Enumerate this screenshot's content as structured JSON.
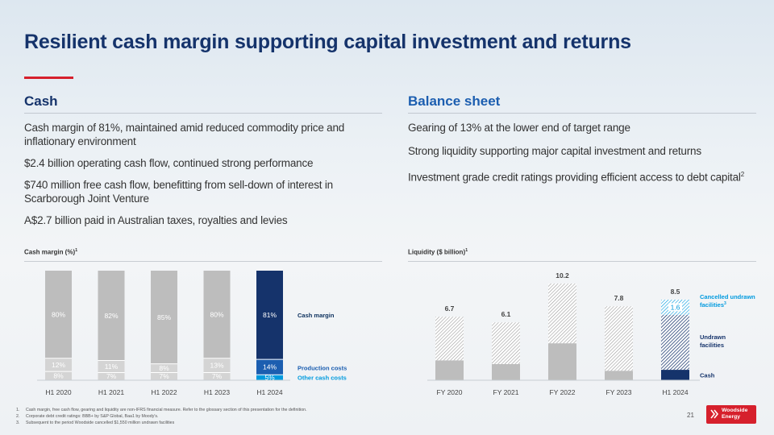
{
  "title": "Resilient cash margin supporting capital investment and returns",
  "cash": {
    "heading": "Cash",
    "bullets": [
      [
        "Cash margin of 81%, maintained amid reduced commodity price and",
        "inflationary environment"
      ],
      [
        "$2.4 billion operating cash flow, continued strong performance"
      ],
      [
        "$740 million free cash flow, benefitting from sell-down of interest in",
        "Scarborough Joint Venture"
      ],
      [
        "A$2.7 billion paid in Australian taxes, royalties and levies"
      ]
    ]
  },
  "balance": {
    "heading": "Balance sheet",
    "bullets": [
      "Gearing of 13% at the lower end of target range",
      "Strong liquidity supporting major capital investment and returns",
      "Investment grade credit ratings providing efficient access to debt capital"
    ],
    "last_sup": "2"
  },
  "chart_data": [
    {
      "type": "bar",
      "title": "Cash margin (%)",
      "title_sup": "1",
      "categories": [
        "H1 2020",
        "H1 2021",
        "H1 2022",
        "H1 2023",
        "H1 2024"
      ],
      "series": [
        {
          "name": "Other cash costs",
          "values": [
            8,
            7,
            7,
            7,
            5
          ],
          "labels": [
            "8%",
            "7%",
            "7%",
            "7%",
            "5%"
          ]
        },
        {
          "name": "Production costs",
          "values": [
            12,
            11,
            8,
            13,
            14
          ],
          "labels": [
            "12%",
            "11%",
            "8%",
            "13%",
            "14%"
          ]
        },
        {
          "name": "Cash margin",
          "values": [
            80,
            82,
            85,
            80,
            81
          ],
          "labels": [
            "80%",
            "82%",
            "85%",
            "80%",
            "81%"
          ]
        }
      ],
      "legend": [
        "Cash margin",
        "Production costs",
        "Other cash costs"
      ],
      "ylim": [
        0,
        100
      ]
    },
    {
      "type": "bar",
      "title": "Liquidity ($ billion)",
      "title_sup": "1",
      "categories": [
        "FY 2020",
        "FY 2021",
        "FY 2022",
        "FY 2023",
        "H1 2024"
      ],
      "totals": [
        6.7,
        6.1,
        10.2,
        7.8,
        8.5
      ],
      "total_labels": [
        "6.7",
        "6.1",
        "10.2",
        "7.8",
        "8.5"
      ],
      "series": [
        {
          "name": "Cash",
          "values": [
            2.1,
            1.7,
            3.9,
            1.0,
            1.1
          ]
        },
        {
          "name": "Undrawn facilities",
          "values": [
            4.6,
            4.4,
            6.3,
            6.8,
            5.8
          ]
        },
        {
          "name": "Cancelled undrawn facilities",
          "values": [
            0,
            0,
            0,
            0,
            1.6
          ],
          "labels": [
            "",
            "",
            "",
            "",
            "1.6"
          ]
        }
      ],
      "legend": [
        {
          "label": "Cancelled undrawn facilities",
          "sup": "3",
          "color": "#009ade"
        },
        {
          "label": "Undrawn facilities",
          "color": "#15336b"
        },
        {
          "label": "Cash",
          "color": "#15336b"
        }
      ],
      "ylim": [
        0,
        10.2
      ]
    }
  ],
  "footnotes": [
    {
      "num": "1.",
      "text": "Cash margin, free cash flow, gearing and liquidity are non-IFRS financial measure. Refer to the glossary section of this presentation for the definition."
    },
    {
      "num": "2.",
      "text": "Corporate debt credit ratings: BBB+ by S&P Global, Baa1 by Moody's."
    },
    {
      "num": "3.",
      "text": "Subsequent to the period Woodside cancelled $1,550 million undrawn facilities"
    }
  ],
  "page_number": "21",
  "logo": {
    "line1": "Woodside",
    "line2": "Energy"
  },
  "colors": {
    "navy": "#15336b",
    "heading_blue": "#1c5eb0",
    "red": "#d6202c",
    "cyan": "#009ade",
    "grey": "#bdbdbd",
    "label_navy": "#0b2f5c"
  }
}
